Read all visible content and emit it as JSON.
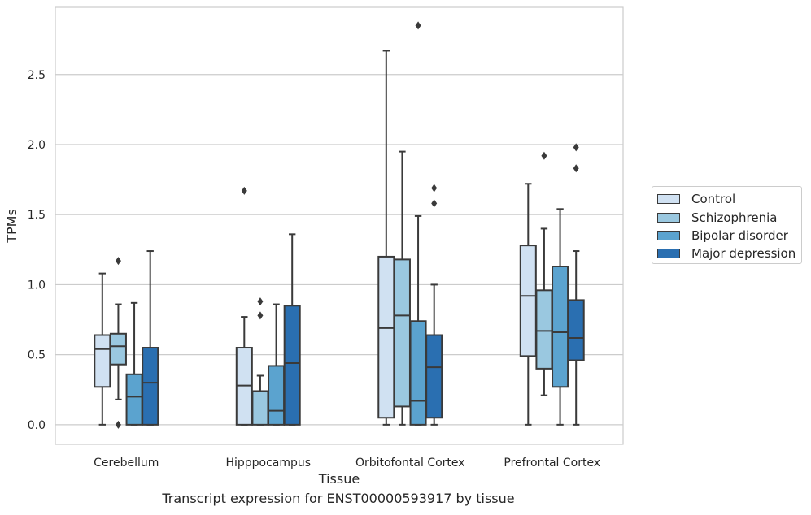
{
  "chart_data": {
    "type": "box",
    "xlabel": "Tissue",
    "ylabel": "TPMs",
    "ylim": [
      -0.14,
      2.98
    ],
    "yticks": [
      0.0,
      0.5,
      1.0,
      1.5,
      2.0,
      2.5
    ],
    "ytick_labels": [
      "0.0",
      "0.5",
      "1.0",
      "1.5",
      "2.0",
      "2.5"
    ],
    "grid": true,
    "legend_position": "right",
    "categories": [
      "Cerebellum",
      "Hipppocampus",
      "Orbitofontal Cortex",
      "Prefrontal Cortex"
    ],
    "series": [
      {
        "name": "Control",
        "color": "#d0e1f2",
        "boxes": [
          {
            "whisker_low": 0.0,
            "q1": 0.27,
            "median": 0.54,
            "q3": 0.64,
            "whisker_high": 1.08,
            "outliers": []
          },
          {
            "whisker_low": 0.0,
            "q1": 0.0,
            "median": 0.28,
            "q3": 0.55,
            "whisker_high": 0.77,
            "outliers": [
              1.67
            ]
          },
          {
            "whisker_low": 0.0,
            "q1": 0.05,
            "median": 0.69,
            "q3": 1.2,
            "whisker_high": 2.67,
            "outliers": []
          },
          {
            "whisker_low": 0.0,
            "q1": 0.49,
            "median": 0.92,
            "q3": 1.28,
            "whisker_high": 1.72,
            "outliers": []
          }
        ]
      },
      {
        "name": "Schizophrenia",
        "color": "#9ac8e0",
        "boxes": [
          {
            "whisker_low": 0.18,
            "q1": 0.43,
            "median": 0.56,
            "q3": 0.65,
            "whisker_high": 0.86,
            "outliers": [
              1.17,
              0.0
            ]
          },
          {
            "whisker_low": 0.0,
            "q1": 0.0,
            "median": 0.24,
            "q3": 0.24,
            "whisker_high": 0.35,
            "outliers": [
              0.88,
              0.78
            ]
          },
          {
            "whisker_low": 0.0,
            "q1": 0.13,
            "median": 0.78,
            "q3": 1.18,
            "whisker_high": 1.95,
            "outliers": []
          },
          {
            "whisker_low": 0.21,
            "q1": 0.4,
            "median": 0.67,
            "q3": 0.96,
            "whisker_high": 1.4,
            "outliers": [
              1.92
            ]
          }
        ]
      },
      {
        "name": "Bipolar disorder",
        "color": "#5ba3cf",
        "boxes": [
          {
            "whisker_low": 0.0,
            "q1": 0.0,
            "median": 0.2,
            "q3": 0.36,
            "whisker_high": 0.87,
            "outliers": []
          },
          {
            "whisker_low": 0.0,
            "q1": 0.0,
            "median": 0.1,
            "q3": 0.42,
            "whisker_high": 0.86,
            "outliers": []
          },
          {
            "whisker_low": 0.0,
            "q1": 0.0,
            "median": 0.17,
            "q3": 0.74,
            "whisker_high": 1.49,
            "outliers": [
              2.85
            ]
          },
          {
            "whisker_low": 0.0,
            "q1": 0.27,
            "median": 0.66,
            "q3": 1.13,
            "whisker_high": 1.54,
            "outliers": []
          }
        ]
      },
      {
        "name": "Major depression",
        "color": "#2a6fb1",
        "boxes": [
          {
            "whisker_low": 0.0,
            "q1": 0.0,
            "median": 0.3,
            "q3": 0.55,
            "whisker_high": 1.24,
            "outliers": []
          },
          {
            "whisker_low": 0.0,
            "q1": 0.0,
            "median": 0.44,
            "q3": 0.85,
            "whisker_high": 1.36,
            "outliers": []
          },
          {
            "whisker_low": 0.0,
            "q1": 0.05,
            "median": 0.41,
            "q3": 0.64,
            "whisker_high": 1.0,
            "outliers": [
              1.69,
              1.58
            ]
          },
          {
            "whisker_low": 0.0,
            "q1": 0.46,
            "median": 0.62,
            "q3": 0.89,
            "whisker_high": 1.24,
            "outliers": [
              1.98,
              1.83
            ]
          }
        ]
      }
    ],
    "caption": "Transcript expression for ENST00000593917 by tissue"
  }
}
